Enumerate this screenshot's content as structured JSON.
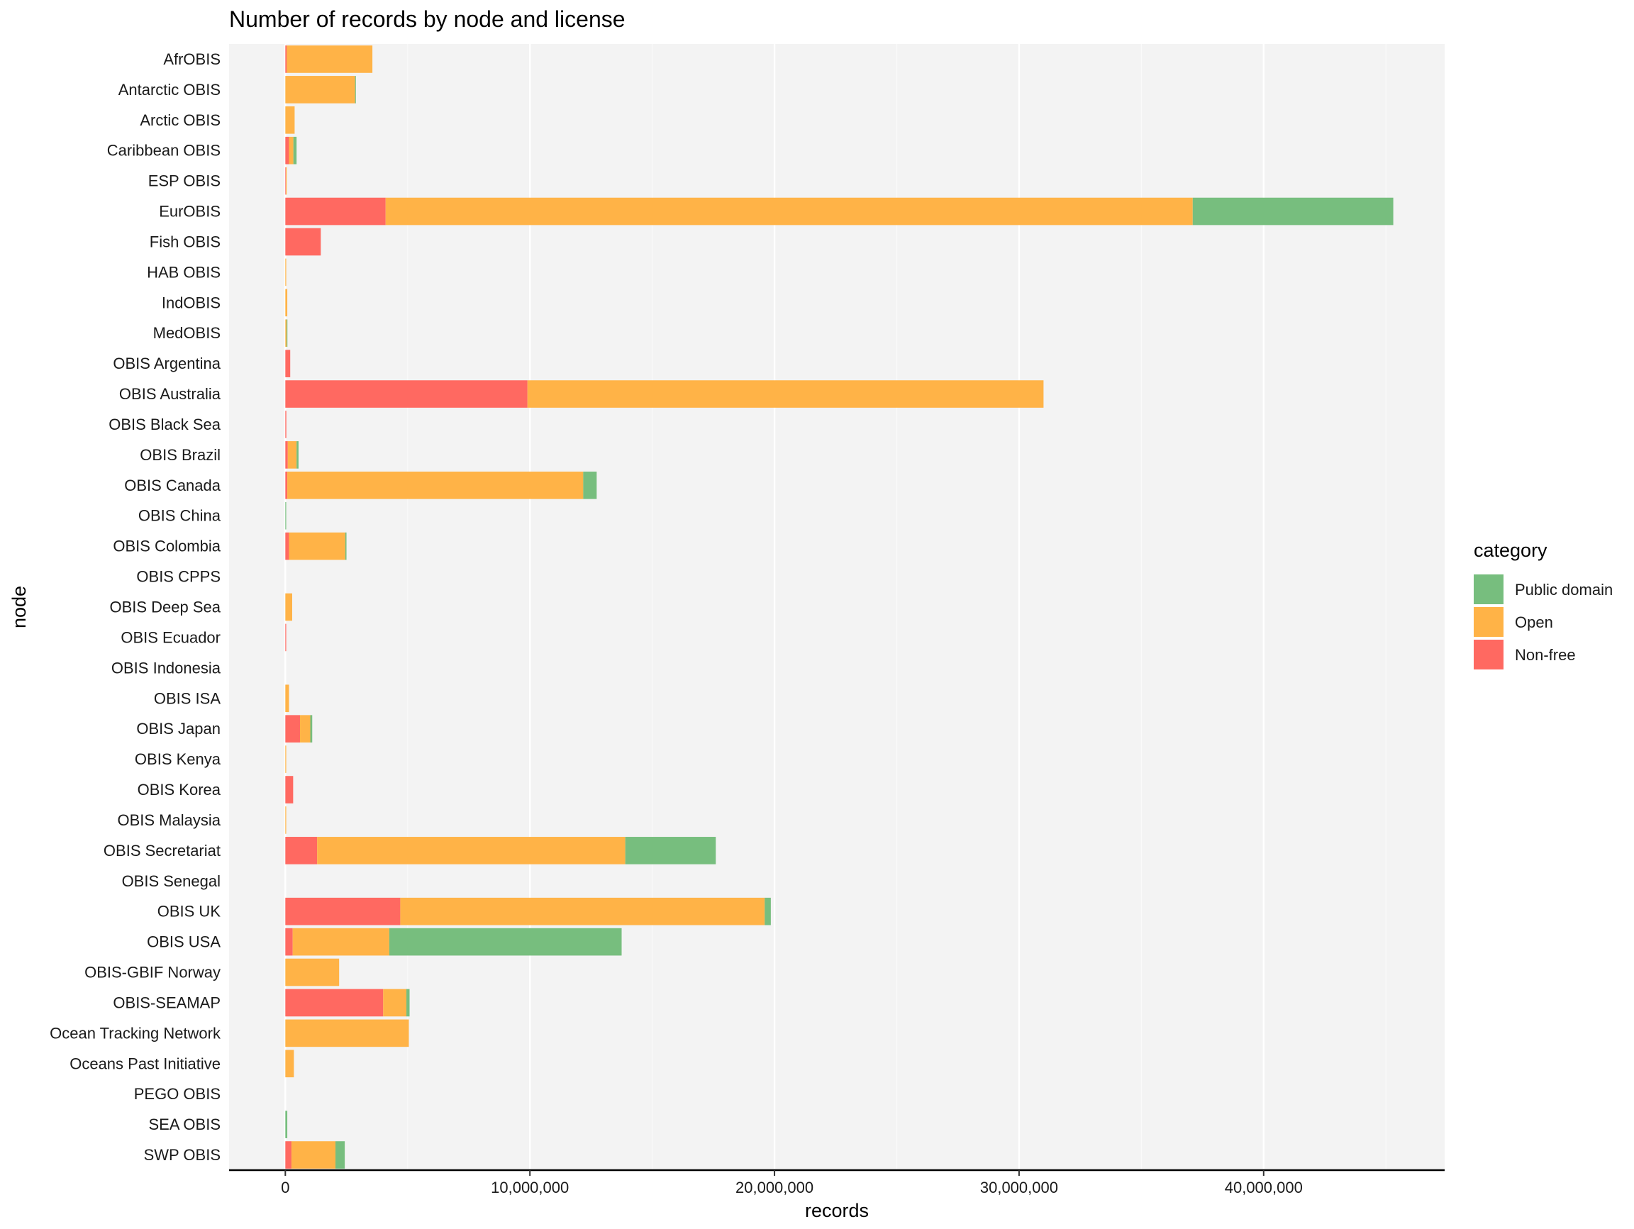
{
  "chart_data": {
    "type": "bar",
    "orientation": "horizontal",
    "stacked": true,
    "title": "Number of records by node and license",
    "xlabel": "records",
    "ylabel": "node",
    "xlim": [
      -2300000,
      47400000
    ],
    "x_ticks": [
      0,
      10000000,
      20000000,
      30000000,
      40000000
    ],
    "x_tick_labels": [
      "0",
      "10,000,000",
      "20,000,000",
      "30,000,000",
      "40,000,000"
    ],
    "grid": true,
    "legend_position": "right",
    "legend_title": "category",
    "categories": [
      "AfrOBIS",
      "Antarctic OBIS",
      "Arctic OBIS",
      "Caribbean OBIS",
      "ESP OBIS",
      "EurOBIS",
      "Fish OBIS",
      "HAB OBIS",
      "IndOBIS",
      "MedOBIS",
      "OBIS Argentina",
      "OBIS Australia",
      "OBIS Black Sea",
      "OBIS Brazil",
      "OBIS Canada",
      "OBIS China",
      "OBIS Colombia",
      "OBIS CPPS",
      "OBIS Deep Sea",
      "OBIS Ecuador",
      "OBIS Indonesia",
      "OBIS ISA",
      "OBIS Japan",
      "OBIS Kenya",
      "OBIS Korea",
      "OBIS Malaysia",
      "OBIS Secretariat",
      "OBIS Senegal",
      "OBIS UK",
      "OBIS USA",
      "OBIS-GBIF Norway",
      "OBIS-SEAMAP",
      "Ocean Tracking Network",
      "Oceans Past Initiative",
      "PEGO OBIS",
      "SEA OBIS",
      "SWP OBIS"
    ],
    "series": [
      {
        "name": "Non-free",
        "color": "#FF6961",
        "values": [
          60000,
          0,
          0,
          150000,
          20000,
          4100000,
          1450000,
          0,
          0,
          0,
          200000,
          9900000,
          40000,
          100000,
          80000,
          0,
          150000,
          0,
          0,
          30000,
          0,
          0,
          600000,
          0,
          320000,
          0,
          1300000,
          0,
          4700000,
          300000,
          0,
          4000000,
          0,
          0,
          0,
          0,
          250000
        ]
      },
      {
        "name": "Open",
        "color": "#FFB347",
        "values": [
          3500000,
          2850000,
          380000,
          180000,
          10000,
          33000000,
          0,
          20000,
          80000,
          50000,
          0,
          21100000,
          0,
          360000,
          12100000,
          0,
          2300000,
          0,
          280000,
          0,
          0,
          150000,
          420000,
          30000,
          0,
          30000,
          12600000,
          0,
          14900000,
          3950000,
          2200000,
          950000,
          5050000,
          350000,
          0,
          0,
          1800000
        ]
      },
      {
        "name": "Public domain",
        "color": "#77BE7E",
        "values": [
          0,
          20000,
          0,
          130000,
          0,
          8200000,
          0,
          0,
          0,
          30000,
          0,
          0,
          0,
          80000,
          550000,
          20000,
          50000,
          0,
          0,
          0,
          0,
          0,
          80000,
          0,
          0,
          0,
          3700000,
          0,
          250000,
          9500000,
          0,
          130000,
          0,
          0,
          0,
          80000,
          380000
        ]
      }
    ],
    "legend_order": [
      "Public domain",
      "Open",
      "Non-free"
    ]
  }
}
